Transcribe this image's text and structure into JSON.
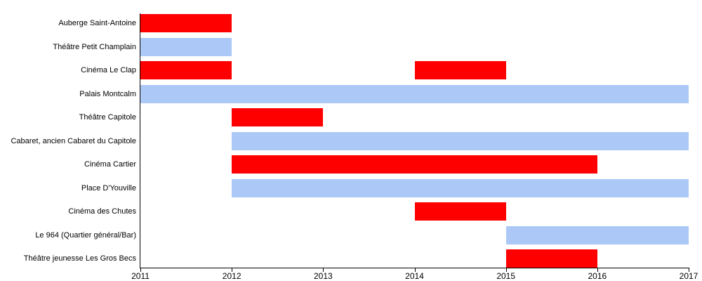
{
  "chart_data": {
    "type": "gantt",
    "title": "",
    "xlabel": "",
    "ylabel": "",
    "grid": false,
    "legend_position": "none",
    "categories": [
      "Auberge Saint-Antoine",
      "Théâtre Petit Champlain",
      "Cinéma Le Clap",
      "Palais Montcalm",
      "Théâtre Capitole",
      "Cabaret, ancien Cabaret du Capitole",
      "Cinéma Cartier",
      "Place D'Youville",
      "Cinéma des Chutes",
      "Le 964 (Quartier général/Bar)",
      "Théâtre jeunesse Les Gros Becs"
    ],
    "bars": [
      {
        "row": 0,
        "category": "Auberge Saint-Antoine",
        "start": 2011,
        "end": 2012,
        "color": "red"
      },
      {
        "row": 1,
        "category": "Théâtre Petit Champlain",
        "start": 2011,
        "end": 2012,
        "color": "blue"
      },
      {
        "row": 2,
        "category": "Cinéma Le Clap",
        "start": 2011,
        "end": 2012,
        "color": "red"
      },
      {
        "row": 2,
        "category": "Cinéma Le Clap",
        "start": 2014,
        "end": 2015,
        "color": "red"
      },
      {
        "row": 3,
        "category": "Palais Montcalm",
        "start": 2011,
        "end": 2017,
        "color": "blue"
      },
      {
        "row": 4,
        "category": "Théâtre Capitole",
        "start": 2012,
        "end": 2013,
        "color": "red"
      },
      {
        "row": 5,
        "category": "Cabaret, ancien Cabaret du Capitole",
        "start": 2012,
        "end": 2017,
        "color": "blue"
      },
      {
        "row": 6,
        "category": "Cinéma Cartier",
        "start": 2012,
        "end": 2016,
        "color": "red"
      },
      {
        "row": 7,
        "category": "Place D'Youville",
        "start": 2012,
        "end": 2017,
        "color": "blue"
      },
      {
        "row": 8,
        "category": "Cinéma des Chutes",
        "start": 2014,
        "end": 2015,
        "color": "red"
      },
      {
        "row": 9,
        "category": "Le 964 (Quartier général/Bar)",
        "start": 2015,
        "end": 2017,
        "color": "blue"
      },
      {
        "row": 10,
        "category": "Théâtre jeunesse Les Gros Becs",
        "start": 2015,
        "end": 2016,
        "color": "red"
      }
    ],
    "x_axis": {
      "min": 2011,
      "max": 2017,
      "tick_labels": [
        "2011",
        "2012",
        "2013",
        "2014",
        "2015",
        "2016",
        "2017"
      ]
    },
    "colors": {
      "red": "#ff0000",
      "blue": "#abc8f7"
    }
  }
}
